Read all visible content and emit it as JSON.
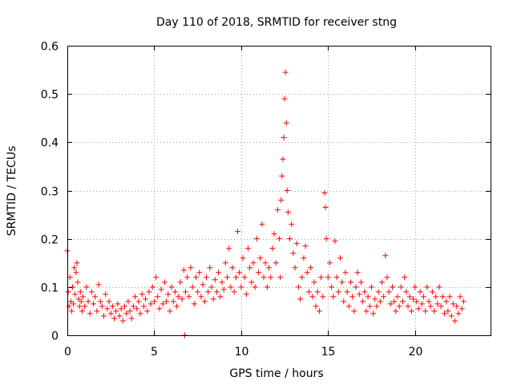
{
  "chart_data": {
    "type": "scatter",
    "title": "Day 110 of 2018, SRMTID for receiver stng",
    "xlabel": "GPS time / hours",
    "ylabel": "SRMTID / TECUs",
    "xlim": [
      0,
      24.35
    ],
    "ylim": [
      0,
      0.6
    ],
    "xticks": [
      0,
      5,
      10,
      15,
      20
    ],
    "xtick_labels": [
      "0",
      "5",
      "10",
      "15",
      "20"
    ],
    "yticks": [
      0,
      0.1,
      0.2,
      0.3,
      0.4,
      0.5,
      0.6
    ],
    "ytick_labels": [
      "0",
      "0.1",
      "0.2",
      "0.3",
      "0.4",
      "0.5",
      "0.6"
    ],
    "grid": true,
    "marker": "+",
    "color": "#ff0000",
    "series": [
      {
        "name": "SRMTID",
        "points": [
          [
            0.0,
            0.175
          ],
          [
            0.05,
            0.09
          ],
          [
            0.1,
            0.06
          ],
          [
            0.15,
            0.12
          ],
          [
            0.2,
            0.07
          ],
          [
            0.25,
            0.05
          ],
          [
            0.3,
            0.1
          ],
          [
            0.35,
            0.065
          ],
          [
            0.4,
            0.14
          ],
          [
            0.45,
            0.085
          ],
          [
            0.5,
            0.13
          ],
          [
            0.55,
            0.15
          ],
          [
            0.6,
            0.11
          ],
          [
            0.65,
            0.075
          ],
          [
            0.7,
            0.06
          ],
          [
            0.75,
            0.09
          ],
          [
            0.8,
            0.07
          ],
          [
            0.85,
            0.05
          ],
          [
            0.9,
            0.08
          ],
          [
            1.0,
            0.06
          ],
          [
            1.1,
            0.1
          ],
          [
            1.2,
            0.07
          ],
          [
            1.3,
            0.045
          ],
          [
            1.4,
            0.09
          ],
          [
            1.5,
            0.065
          ],
          [
            1.6,
            0.08
          ],
          [
            1.7,
            0.05
          ],
          [
            1.8,
            0.105
          ],
          [
            1.9,
            0.07
          ],
          [
            2.0,
            0.06
          ],
          [
            2.1,
            0.04
          ],
          [
            2.2,
            0.085
          ],
          [
            2.3,
            0.055
          ],
          [
            2.4,
            0.07
          ],
          [
            2.5,
            0.045
          ],
          [
            2.6,
            0.06
          ],
          [
            2.7,
            0.035
          ],
          [
            2.8,
            0.05
          ],
          [
            2.9,
            0.065
          ],
          [
            3.0,
            0.04
          ],
          [
            3.1,
            0.055
          ],
          [
            3.2,
            0.03
          ],
          [
            3.3,
            0.06
          ],
          [
            3.4,
            0.045
          ],
          [
            3.5,
            0.07
          ],
          [
            3.6,
            0.05
          ],
          [
            3.7,
            0.035
          ],
          [
            3.8,
            0.06
          ],
          [
            3.9,
            0.08
          ],
          [
            4.0,
            0.055
          ],
          [
            4.1,
            0.07
          ],
          [
            4.2,
            0.045
          ],
          [
            4.3,
            0.085
          ],
          [
            4.4,
            0.06
          ],
          [
            4.5,
            0.075
          ],
          [
            4.6,
            0.05
          ],
          [
            4.7,
            0.09
          ],
          [
            4.8,
            0.065
          ],
          [
            4.9,
            0.1
          ],
          [
            5.0,
            0.07
          ],
          [
            5.1,
            0.12
          ],
          [
            5.2,
            0.08
          ],
          [
            5.3,
            0.055
          ],
          [
            5.4,
            0.095
          ],
          [
            5.5,
            0.065
          ],
          [
            5.6,
            0.11
          ],
          [
            5.7,
            0.07
          ],
          [
            5.8,
            0.085
          ],
          [
            5.9,
            0.05
          ],
          [
            6.0,
            0.1
          ],
          [
            6.1,
            0.07
          ],
          [
            6.2,
            0.09
          ],
          [
            6.3,
            0.06
          ],
          [
            6.4,
            0.08
          ],
          [
            6.5,
            0.11
          ],
          [
            6.6,
            0.075
          ],
          [
            6.7,
            0.135
          ],
          [
            6.75,
            0.0
          ],
          [
            6.8,
            0.09
          ],
          [
            6.9,
            0.12
          ],
          [
            7.0,
            0.08
          ],
          [
            7.1,
            0.14
          ],
          [
            7.2,
            0.1
          ],
          [
            7.3,
            0.065
          ],
          [
            7.4,
            0.12
          ],
          [
            7.5,
            0.09
          ],
          [
            7.6,
            0.13
          ],
          [
            7.7,
            0.08
          ],
          [
            7.8,
            0.105
          ],
          [
            7.9,
            0.07
          ],
          [
            8.0,
            0.12
          ],
          [
            8.1,
            0.09
          ],
          [
            8.2,
            0.14
          ],
          [
            8.3,
            0.1
          ],
          [
            8.4,
            0.075
          ],
          [
            8.5,
            0.115
          ],
          [
            8.6,
            0.09
          ],
          [
            8.7,
            0.13
          ],
          [
            8.8,
            0.08
          ],
          [
            8.9,
            0.11
          ],
          [
            9.0,
            0.095
          ],
          [
            9.1,
            0.15
          ],
          [
            9.2,
            0.12
          ],
          [
            9.3,
            0.18
          ],
          [
            9.4,
            0.1
          ],
          [
            9.5,
            0.14
          ],
          [
            9.6,
            0.09
          ],
          [
            9.7,
            0.12
          ],
          [
            9.8,
            0.215
          ],
          [
            9.9,
            0.13
          ],
          [
            10.0,
            0.1
          ],
          [
            10.1,
            0.16
          ],
          [
            10.2,
            0.12
          ],
          [
            10.3,
            0.085
          ],
          [
            10.4,
            0.18
          ],
          [
            10.5,
            0.14
          ],
          [
            10.6,
            0.11
          ],
          [
            10.7,
            0.15
          ],
          [
            10.8,
            0.1
          ],
          [
            10.9,
            0.2
          ],
          [
            11.0,
            0.13
          ],
          [
            11.1,
            0.16
          ],
          [
            11.2,
            0.23
          ],
          [
            11.3,
            0.12
          ],
          [
            11.4,
            0.15
          ],
          [
            11.5,
            0.1
          ],
          [
            11.6,
            0.14
          ],
          [
            11.7,
            0.12
          ],
          [
            11.8,
            0.18
          ],
          [
            11.9,
            0.21
          ],
          [
            12.0,
            0.15
          ],
          [
            12.1,
            0.26
          ],
          [
            12.2,
            0.2
          ],
          [
            12.25,
            0.12
          ],
          [
            12.3,
            0.28
          ],
          [
            12.35,
            0.33
          ],
          [
            12.4,
            0.365
          ],
          [
            12.45,
            0.41
          ],
          [
            12.5,
            0.49
          ],
          [
            12.55,
            0.545
          ],
          [
            12.6,
            0.44
          ],
          [
            12.65,
            0.3
          ],
          [
            12.7,
            0.255
          ],
          [
            12.8,
            0.2
          ],
          [
            12.9,
            0.23
          ],
          [
            13.0,
            0.17
          ],
          [
            13.1,
            0.14
          ],
          [
            13.2,
            0.19
          ],
          [
            13.3,
            0.1
          ],
          [
            13.4,
            0.075
          ],
          [
            13.5,
            0.12
          ],
          [
            13.6,
            0.16
          ],
          [
            13.7,
            0.185
          ],
          [
            13.8,
            0.13
          ],
          [
            13.9,
            0.09
          ],
          [
            14.0,
            0.14
          ],
          [
            14.1,
            0.08
          ],
          [
            14.2,
            0.11
          ],
          [
            14.3,
            0.06
          ],
          [
            14.4,
            0.09
          ],
          [
            14.5,
            0.05
          ],
          [
            14.6,
            0.12
          ],
          [
            14.7,
            0.08
          ],
          [
            14.8,
            0.295
          ],
          [
            14.85,
            0.265
          ],
          [
            14.9,
            0.2
          ],
          [
            15.0,
            0.12
          ],
          [
            15.1,
            0.15
          ],
          [
            15.2,
            0.1
          ],
          [
            15.3,
            0.08
          ],
          [
            15.4,
            0.195
          ],
          [
            15.5,
            0.12
          ],
          [
            15.6,
            0.09
          ],
          [
            15.7,
            0.16
          ],
          [
            15.8,
            0.11
          ],
          [
            15.9,
            0.07
          ],
          [
            16.0,
            0.13
          ],
          [
            16.1,
            0.09
          ],
          [
            16.2,
            0.06
          ],
          [
            16.3,
            0.11
          ],
          [
            16.4,
            0.08
          ],
          [
            16.5,
            0.05
          ],
          [
            16.6,
            0.1
          ],
          [
            16.7,
            0.13
          ],
          [
            16.8,
            0.085
          ],
          [
            16.9,
            0.11
          ],
          [
            17.0,
            0.07
          ],
          [
            17.1,
            0.09
          ],
          [
            17.2,
            0.05
          ],
          [
            17.3,
            0.08
          ],
          [
            17.4,
            0.06
          ],
          [
            17.5,
            0.1
          ],
          [
            17.6,
            0.045
          ],
          [
            17.7,
            0.075
          ],
          [
            17.8,
            0.06
          ],
          [
            17.9,
            0.09
          ],
          [
            18.0,
            0.07
          ],
          [
            18.1,
            0.11
          ],
          [
            18.2,
            0.08
          ],
          [
            18.3,
            0.165
          ],
          [
            18.4,
            0.12
          ],
          [
            18.5,
            0.09
          ],
          [
            18.6,
            0.065
          ],
          [
            18.7,
            0.1
          ],
          [
            18.8,
            0.07
          ],
          [
            18.9,
            0.05
          ],
          [
            19.0,
            0.08
          ],
          [
            19.1,
            0.06
          ],
          [
            19.2,
            0.1
          ],
          [
            19.3,
            0.07
          ],
          [
            19.4,
            0.12
          ],
          [
            19.5,
            0.09
          ],
          [
            19.6,
            0.06
          ],
          [
            19.7,
            0.08
          ],
          [
            19.8,
            0.05
          ],
          [
            19.9,
            0.075
          ],
          [
            20.0,
            0.1
          ],
          [
            20.1,
            0.07
          ],
          [
            20.2,
            0.055
          ],
          [
            20.3,
            0.09
          ],
          [
            20.4,
            0.065
          ],
          [
            20.5,
            0.08
          ],
          [
            20.6,
            0.05
          ],
          [
            20.7,
            0.1
          ],
          [
            20.8,
            0.07
          ],
          [
            20.9,
            0.06
          ],
          [
            21.0,
            0.09
          ],
          [
            21.1,
            0.05
          ],
          [
            21.2,
            0.08
          ],
          [
            21.3,
            0.065
          ],
          [
            21.4,
            0.1
          ],
          [
            21.5,
            0.06
          ],
          [
            21.6,
            0.08
          ],
          [
            21.7,
            0.045
          ],
          [
            21.8,
            0.07
          ],
          [
            21.9,
            0.05
          ],
          [
            22.0,
            0.08
          ],
          [
            22.1,
            0.04
          ],
          [
            22.2,
            0.065
          ],
          [
            22.3,
            0.03
          ],
          [
            22.4,
            0.06
          ],
          [
            22.5,
            0.045
          ],
          [
            22.6,
            0.08
          ],
          [
            22.7,
            0.055
          ],
          [
            22.8,
            0.07
          ]
        ]
      }
    ]
  }
}
